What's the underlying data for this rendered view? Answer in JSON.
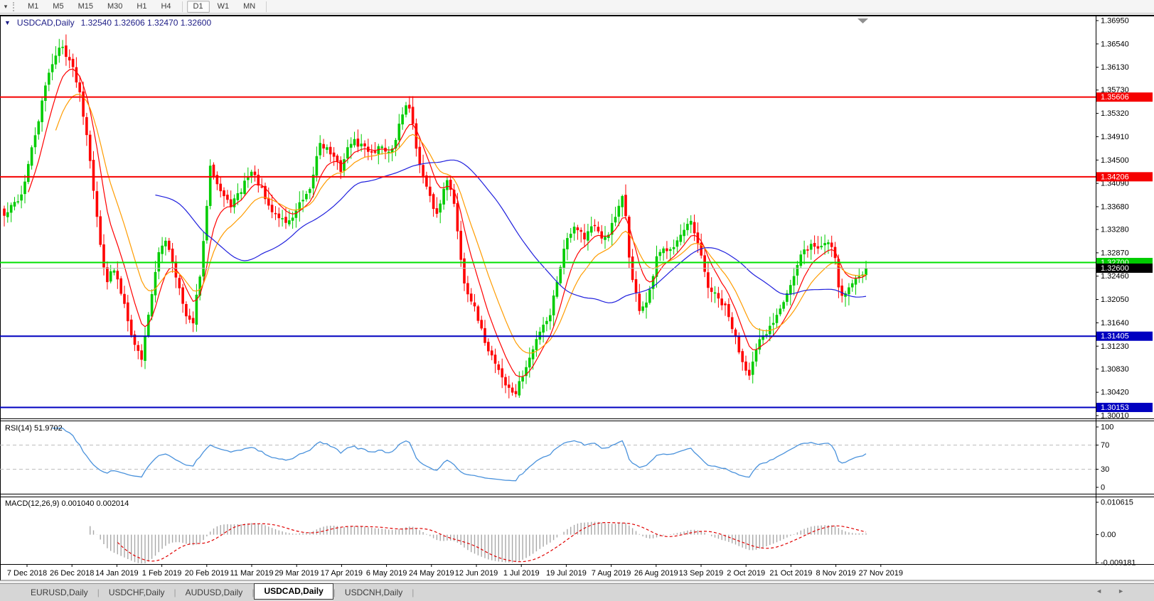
{
  "toolbar": {
    "dropdown_icon": "▾",
    "buttons": [
      "M1",
      "M5",
      "M15",
      "M30",
      "H1",
      "H4",
      "D1",
      "W1",
      "MN"
    ],
    "active": "D1",
    "group_break_before": "D1"
  },
  "chart": {
    "title_caret": "▼",
    "title_symbol": "USDCAD,Daily",
    "title_ohlc": "1.32540 1.32606 1.32470 1.32600"
  },
  "price_axis": {
    "tick_labels": [
      "1.36950",
      "1.36540",
      "1.36130",
      "1.35730",
      "1.35320",
      "1.34910",
      "1.34500",
      "1.34090",
      "1.33680",
      "1.33280",
      "1.32870",
      "1.32460",
      "1.32050",
      "1.31640",
      "1.31230",
      "1.30830",
      "1.30420",
      "1.30010"
    ]
  },
  "levels": [
    {
      "label": "1.35606",
      "value": 1.35606,
      "line_color": "#f50000",
      "badge_color": "#f50000",
      "line_width": 2
    },
    {
      "label": "1.34206",
      "value": 1.34206,
      "line_color": "#f50000",
      "badge_color": "#f50000",
      "line_width": 2
    },
    {
      "label": "1.32700",
      "value": 1.327,
      "line_color": "#00e000",
      "badge_color": "#00cc00",
      "line_width": 2
    },
    {
      "label": "1.32600",
      "value": 1.326,
      "line_color": "#bfbfbf",
      "badge_color": "#000000",
      "line_width": 1
    },
    {
      "label": "1.31405",
      "value": 1.31405,
      "line_color": "#0000c0",
      "badge_color": "#0000c0",
      "line_width": 2
    },
    {
      "label": "1.30153",
      "value": 1.30153,
      "line_color": "#0000c0",
      "badge_color": "#0000c0",
      "line_width": 2
    }
  ],
  "date_axis": {
    "labels": [
      "7 Dec 2018",
      "26 Dec 2018",
      "14 Jan 2019",
      "1 Feb 2019",
      "20 Feb 2019",
      "11 Mar 2019",
      "29 Mar 2019",
      "17 Apr 2019",
      "6 May 2019",
      "24 May 2019",
      "12 Jun 2019",
      "1 Jul 2019",
      "19 Jul 2019",
      "7 Aug 2019",
      "26 Aug 2019",
      "13 Sep 2019",
      "2 Oct 2019",
      "21 Oct 2019",
      "8 Nov 2019",
      "27 Nov 2019"
    ]
  },
  "rsi_panel": {
    "label": "RSI(14) 51.9702",
    "axis_labels": [
      "100",
      "70",
      "30",
      "0"
    ],
    "axis_values": [
      100,
      70,
      30,
      0
    ],
    "dashed_levels": [
      70,
      30
    ],
    "line_color": "#4a92dc",
    "value": 51.9702
  },
  "macd_panel": {
    "label": "MACD(12,26,9) 0.001040 0.002014",
    "axis": [
      {
        "text": "0.010615",
        "value": 0.010615
      },
      {
        "text": "0.00",
        "value": 0
      },
      {
        "text": "-0.009181",
        "value": -0.009181
      }
    ],
    "histogram_color": "#a8a8a8",
    "signal_color": "#e00000",
    "values": [
      0.00104,
      0.002014
    ]
  },
  "tabs": {
    "items": [
      "EURUSD,Daily",
      "USDCHF,Daily",
      "AUDUSD,Daily",
      "USDCAD,Daily",
      "USDCNH,Daily"
    ],
    "active_index": 3,
    "left_arrow": "◄",
    "right_arrow": "►"
  },
  "chart_data": {
    "type": "candlestick",
    "symbol": "USDCAD",
    "timeframe": "Daily",
    "ohlc_display": {
      "open": 1.3254,
      "high": 1.32606,
      "low": 1.3247,
      "close": 1.326
    },
    "price_range": [
      1.3001,
      1.3695
    ],
    "candles_count": 252,
    "seed": 42,
    "last_close": 1.326,
    "up_color": "#00cc00",
    "down_color": "#ff0000",
    "close_path": [
      [
        0.0,
        1.3351
      ],
      [
        0.02,
        1.3389
      ],
      [
        0.037,
        1.3501
      ],
      [
        0.053,
        1.3614
      ],
      [
        0.066,
        1.3651
      ],
      [
        0.074,
        1.3633
      ],
      [
        0.086,
        1.3583
      ],
      [
        0.098,
        1.3476
      ],
      [
        0.11,
        1.3314
      ],
      [
        0.119,
        1.3239
      ],
      [
        0.127,
        1.3258
      ],
      [
        0.139,
        1.3201
      ],
      [
        0.151,
        1.3126
      ],
      [
        0.16,
        1.3101
      ],
      [
        0.168,
        1.3189
      ],
      [
        0.18,
        1.3289
      ],
      [
        0.188,
        1.3314
      ],
      [
        0.2,
        1.3245
      ],
      [
        0.21,
        1.3176
      ],
      [
        0.218,
        1.3158
      ],
      [
        0.229,
        1.3264
      ],
      [
        0.239,
        1.3445
      ],
      [
        0.249,
        1.3401
      ],
      [
        0.261,
        1.337
      ],
      [
        0.273,
        1.3389
      ],
      [
        0.285,
        1.3433
      ],
      [
        0.296,
        1.3408
      ],
      [
        0.307,
        1.3364
      ],
      [
        0.318,
        1.3351
      ],
      [
        0.33,
        1.3339
      ],
      [
        0.342,
        1.337
      ],
      [
        0.354,
        1.3389
      ],
      [
        0.366,
        1.3483
      ],
      [
        0.378,
        1.3464
      ],
      [
        0.39,
        1.3433
      ],
      [
        0.402,
        1.3483
      ],
      [
        0.414,
        1.3476
      ],
      [
        0.427,
        1.3464
      ],
      [
        0.438,
        1.3476
      ],
      [
        0.449,
        1.3458
      ],
      [
        0.46,
        1.352
      ],
      [
        0.466,
        1.3551
      ],
      [
        0.473,
        1.3526
      ],
      [
        0.482,
        1.3439
      ],
      [
        0.492,
        1.3389
      ],
      [
        0.503,
        1.3351
      ],
      [
        0.513,
        1.3426
      ],
      [
        0.523,
        1.3364
      ],
      [
        0.533,
        1.3239
      ],
      [
        0.543,
        1.3201
      ],
      [
        0.553,
        1.3151
      ],
      [
        0.563,
        1.3114
      ],
      [
        0.572,
        1.3089
      ],
      [
        0.583,
        1.3051
      ],
      [
        0.593,
        1.3039
      ],
      [
        0.603,
        1.3076
      ],
      [
        0.613,
        1.3114
      ],
      [
        0.623,
        1.3158
      ],
      [
        0.633,
        1.3176
      ],
      [
        0.643,
        1.3251
      ],
      [
        0.653,
        1.3314
      ],
      [
        0.663,
        1.3339
      ],
      [
        0.673,
        1.3314
      ],
      [
        0.683,
        1.3339
      ],
      [
        0.693,
        1.3308
      ],
      [
        0.703,
        1.3326
      ],
      [
        0.713,
        1.3364
      ],
      [
        0.719,
        1.3389
      ],
      [
        0.727,
        1.3251
      ],
      [
        0.737,
        1.3189
      ],
      [
        0.747,
        1.3201
      ],
      [
        0.757,
        1.3276
      ],
      [
        0.767,
        1.3295
      ],
      [
        0.777,
        1.3301
      ],
      [
        0.787,
        1.332
      ],
      [
        0.797,
        1.3339
      ],
      [
        0.807,
        1.3289
      ],
      [
        0.817,
        1.3226
      ],
      [
        0.827,
        1.3208
      ],
      [
        0.837,
        1.3189
      ],
      [
        0.847,
        1.3145
      ],
      [
        0.857,
        1.3095
      ],
      [
        0.865,
        1.3076
      ],
      [
        0.875,
        1.3126
      ],
      [
        0.885,
        1.3145
      ],
      [
        0.895,
        1.3176
      ],
      [
        0.905,
        1.3208
      ],
      [
        0.915,
        1.3239
      ],
      [
        0.925,
        1.3283
      ],
      [
        0.935,
        1.3301
      ],
      [
        0.945,
        1.3295
      ],
      [
        0.955,
        1.3308
      ],
      [
        0.963,
        1.3295
      ],
      [
        0.97,
        1.3208
      ],
      [
        1.0,
        1.326
      ]
    ],
    "moving_averages": [
      {
        "type": "ema",
        "period": 8,
        "color": "#ff0000"
      },
      {
        "type": "ema",
        "period": 16,
        "color": "#ff9c00"
      },
      {
        "type": "sma",
        "period": 45,
        "color": "#2020dd"
      }
    ],
    "rsi": {
      "period": 14,
      "current": 51.9702
    },
    "macd": {
      "fast": 12,
      "slow": 26,
      "signal": 9,
      "current_hist": 0.00104,
      "current_signal": 0.002014
    }
  }
}
